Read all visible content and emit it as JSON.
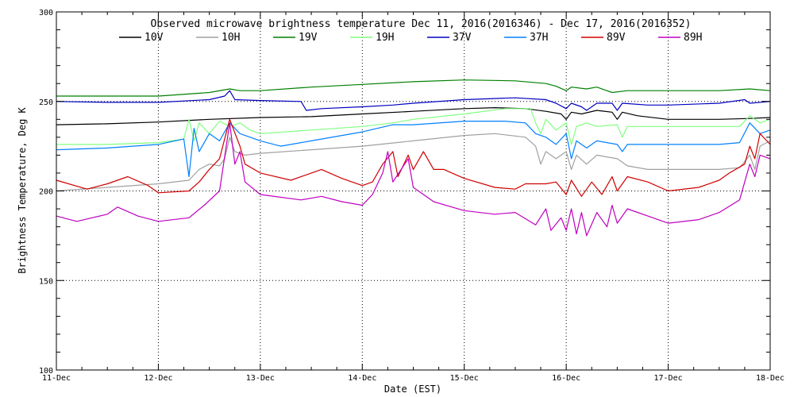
{
  "chart_data": {
    "type": "line",
    "title": "Observed microwave brightness temperature Dec 11, 2016(2016346) - Dec 17, 2016(2016352)",
    "xlabel": "Date (EST)",
    "ylabel": "Brightness Temperature, Deg K",
    "xlim": [
      0,
      7
    ],
    "ylim": [
      100,
      300
    ],
    "x_ticks": [
      {
        "value": 0,
        "label": "11-Dec"
      },
      {
        "value": 1,
        "label": "12-Dec"
      },
      {
        "value": 2,
        "label": "13-Dec"
      },
      {
        "value": 3,
        "label": "14-Dec"
      },
      {
        "value": 4,
        "label": "15-Dec"
      },
      {
        "value": 5,
        "label": "16-Dec"
      },
      {
        "value": 6,
        "label": "17-Dec"
      },
      {
        "value": 7,
        "label": "18-Dec"
      }
    ],
    "y_ticks": [
      {
        "value": 100,
        "label": "100"
      },
      {
        "value": 150,
        "label": "150"
      },
      {
        "value": 200,
        "label": "200"
      },
      {
        "value": 250,
        "label": "250"
      },
      {
        "value": 300,
        "label": "300"
      }
    ],
    "grid": "dotted",
    "legend_position": "top",
    "series": [
      {
        "name": "10V",
        "color": "#000000",
        "points": [
          [
            0,
            237
          ],
          [
            0.5,
            237.5
          ],
          [
            1,
            238.5
          ],
          [
            1.5,
            240
          ],
          [
            2,
            241
          ],
          [
            2.5,
            241.5
          ],
          [
            3,
            243
          ],
          [
            3.5,
            244.5
          ],
          [
            4,
            246
          ],
          [
            4.3,
            246.5
          ],
          [
            4.6,
            246
          ],
          [
            4.8,
            244.5
          ],
          [
            4.95,
            243
          ],
          [
            5,
            240
          ],
          [
            5.05,
            244
          ],
          [
            5.15,
            243
          ],
          [
            5.3,
            245
          ],
          [
            5.45,
            244
          ],
          [
            5.5,
            240
          ],
          [
            5.55,
            244
          ],
          [
            5.7,
            242
          ],
          [
            6,
            240
          ],
          [
            6.5,
            240
          ],
          [
            6.8,
            240.5
          ],
          [
            7,
            241
          ]
        ]
      },
      {
        "name": "10H",
        "color": "#a0a0a0",
        "points": [
          [
            0,
            200
          ],
          [
            0.5,
            202
          ],
          [
            1,
            204
          ],
          [
            1.3,
            206
          ],
          [
            1.4,
            212
          ],
          [
            1.5,
            215
          ],
          [
            1.6,
            214
          ],
          [
            1.65,
            218
          ],
          [
            1.7,
            230
          ],
          [
            1.75,
            222
          ],
          [
            1.85,
            220
          ],
          [
            2,
            221
          ],
          [
            2.5,
            223
          ],
          [
            3,
            225
          ],
          [
            3.5,
            228
          ],
          [
            4,
            231
          ],
          [
            4.3,
            232
          ],
          [
            4.6,
            230
          ],
          [
            4.7,
            225
          ],
          [
            4.75,
            215
          ],
          [
            4.8,
            222
          ],
          [
            4.9,
            218
          ],
          [
            5,
            222
          ],
          [
            5.05,
            212
          ],
          [
            5.1,
            220
          ],
          [
            5.2,
            215
          ],
          [
            5.3,
            220
          ],
          [
            5.5,
            218
          ],
          [
            5.6,
            214
          ],
          [
            5.8,
            212
          ],
          [
            6,
            212
          ],
          [
            6.5,
            212
          ],
          [
            6.7,
            213
          ],
          [
            6.8,
            220
          ],
          [
            6.85,
            212
          ],
          [
            6.9,
            225
          ],
          [
            7,
            228
          ]
        ]
      },
      {
        "name": "19V",
        "color": "#008000",
        "points": [
          [
            0,
            253
          ],
          [
            0.5,
            253
          ],
          [
            1,
            253
          ],
          [
            1.5,
            255
          ],
          [
            1.7,
            257
          ],
          [
            1.8,
            256
          ],
          [
            2,
            256
          ],
          [
            2.5,
            258
          ],
          [
            3,
            259.5
          ],
          [
            3.5,
            261
          ],
          [
            4,
            262
          ],
          [
            4.5,
            261.5
          ],
          [
            4.8,
            260
          ],
          [
            4.9,
            258.5
          ],
          [
            5,
            256
          ],
          [
            5.05,
            258
          ],
          [
            5.2,
            257
          ],
          [
            5.3,
            258
          ],
          [
            5.45,
            255
          ],
          [
            5.6,
            256
          ],
          [
            6,
            256
          ],
          [
            6.5,
            256
          ],
          [
            6.8,
            257
          ],
          [
            7,
            256
          ]
        ]
      },
      {
        "name": "19H",
        "color": "#80ff80",
        "points": [
          [
            0,
            226
          ],
          [
            0.5,
            226
          ],
          [
            1,
            227
          ],
          [
            1.25,
            229
          ],
          [
            1.3,
            240
          ],
          [
            1.35,
            228
          ],
          [
            1.4,
            238
          ],
          [
            1.5,
            232
          ],
          [
            1.6,
            239
          ],
          [
            1.7,
            236
          ],
          [
            1.8,
            238
          ],
          [
            1.9,
            234
          ],
          [
            2,
            232
          ],
          [
            2.5,
            234
          ],
          [
            3,
            236
          ],
          [
            3.3,
            238
          ],
          [
            3.5,
            240
          ],
          [
            4,
            243
          ],
          [
            4.4,
            246
          ],
          [
            4.65,
            246
          ],
          [
            4.7,
            238
          ],
          [
            4.75,
            232
          ],
          [
            4.8,
            240
          ],
          [
            4.9,
            234
          ],
          [
            5,
            238
          ],
          [
            5.05,
            226
          ],
          [
            5.1,
            236
          ],
          [
            5.2,
            238
          ],
          [
            5.3,
            236
          ],
          [
            5.5,
            237
          ],
          [
            5.55,
            230
          ],
          [
            5.6,
            236
          ],
          [
            6,
            236
          ],
          [
            6.5,
            236
          ],
          [
            6.7,
            236
          ],
          [
            6.8,
            242
          ],
          [
            6.9,
            238
          ],
          [
            7,
            240
          ]
        ]
      },
      {
        "name": "37V",
        "color": "#0000c0",
        "points": [
          [
            0,
            250
          ],
          [
            0.5,
            249.5
          ],
          [
            1,
            249.5
          ],
          [
            1.5,
            251
          ],
          [
            1.65,
            253
          ],
          [
            1.7,
            256
          ],
          [
            1.75,
            251
          ],
          [
            2,
            250.5
          ],
          [
            2.4,
            250
          ],
          [
            2.45,
            245
          ],
          [
            2.6,
            246
          ],
          [
            3,
            247
          ],
          [
            3.3,
            248
          ],
          [
            3.5,
            249
          ],
          [
            4,
            251
          ],
          [
            4.5,
            252
          ],
          [
            4.8,
            251
          ],
          [
            4.9,
            249
          ],
          [
            5,
            246
          ],
          [
            5.05,
            249
          ],
          [
            5.15,
            247
          ],
          [
            5.2,
            245
          ],
          [
            5.3,
            249
          ],
          [
            5.45,
            249
          ],
          [
            5.5,
            245
          ],
          [
            5.55,
            249
          ],
          [
            5.8,
            248
          ],
          [
            6,
            248
          ],
          [
            6.5,
            249
          ],
          [
            6.75,
            251
          ],
          [
            6.8,
            249
          ],
          [
            7,
            250
          ]
        ]
      },
      {
        "name": "37H",
        "color": "#0080ff",
        "points": [
          [
            0,
            223
          ],
          [
            0.5,
            224
          ],
          [
            1,
            226
          ],
          [
            1.25,
            229
          ],
          [
            1.3,
            208
          ],
          [
            1.35,
            235
          ],
          [
            1.4,
            222
          ],
          [
            1.5,
            232
          ],
          [
            1.6,
            228
          ],
          [
            1.7,
            238
          ],
          [
            1.8,
            232
          ],
          [
            1.9,
            230
          ],
          [
            2,
            228
          ],
          [
            2.2,
            225
          ],
          [
            2.5,
            228
          ],
          [
            3,
            233
          ],
          [
            3.3,
            237
          ],
          [
            3.5,
            237
          ],
          [
            4,
            239
          ],
          [
            4.4,
            239
          ],
          [
            4.6,
            238
          ],
          [
            4.7,
            232
          ],
          [
            4.8,
            230
          ],
          [
            4.9,
            226
          ],
          [
            5,
            232
          ],
          [
            5.05,
            218
          ],
          [
            5.1,
            228
          ],
          [
            5.2,
            224
          ],
          [
            5.3,
            228
          ],
          [
            5.5,
            226
          ],
          [
            5.55,
            222
          ],
          [
            5.6,
            226
          ],
          [
            6,
            226
          ],
          [
            6.5,
            226
          ],
          [
            6.7,
            227
          ],
          [
            6.8,
            238
          ],
          [
            6.9,
            232
          ],
          [
            7,
            234
          ]
        ]
      },
      {
        "name": "89V",
        "color": "#d00000",
        "points": [
          [
            0,
            206
          ],
          [
            0.3,
            201
          ],
          [
            0.5,
            204
          ],
          [
            0.7,
            208
          ],
          [
            0.9,
            203
          ],
          [
            1,
            199
          ],
          [
            1.3,
            200
          ],
          [
            1.4,
            205
          ],
          [
            1.5,
            212
          ],
          [
            1.6,
            218
          ],
          [
            1.7,
            240
          ],
          [
            1.8,
            225
          ],
          [
            1.85,
            215
          ],
          [
            2,
            210
          ],
          [
            2.3,
            206
          ],
          [
            2.6,
            212
          ],
          [
            2.8,
            207
          ],
          [
            3,
            203
          ],
          [
            3.1,
            205
          ],
          [
            3.2,
            215
          ],
          [
            3.3,
            222
          ],
          [
            3.35,
            208
          ],
          [
            3.45,
            220
          ],
          [
            3.5,
            212
          ],
          [
            3.6,
            222
          ],
          [
            3.7,
            212
          ],
          [
            3.8,
            212
          ],
          [
            4,
            207
          ],
          [
            4.3,
            202
          ],
          [
            4.5,
            201
          ],
          [
            4.6,
            204
          ],
          [
            4.8,
            204
          ],
          [
            4.9,
            205
          ],
          [
            5,
            198
          ],
          [
            5.05,
            206
          ],
          [
            5.15,
            197
          ],
          [
            5.25,
            205
          ],
          [
            5.35,
            198
          ],
          [
            5.45,
            208
          ],
          [
            5.5,
            200
          ],
          [
            5.6,
            208
          ],
          [
            5.8,
            205
          ],
          [
            6,
            200
          ],
          [
            6.3,
            202
          ],
          [
            6.5,
            206
          ],
          [
            6.6,
            210
          ],
          [
            6.75,
            215
          ],
          [
            6.8,
            225
          ],
          [
            6.85,
            218
          ],
          [
            6.9,
            232
          ],
          [
            7,
            226
          ]
        ]
      },
      {
        "name": "89H",
        "color": "#c000c0",
        "points": [
          [
            0,
            186
          ],
          [
            0.2,
            183
          ],
          [
            0.5,
            187
          ],
          [
            0.6,
            191
          ],
          [
            0.8,
            186
          ],
          [
            1,
            183
          ],
          [
            1.3,
            185
          ],
          [
            1.45,
            192
          ],
          [
            1.6,
            200
          ],
          [
            1.7,
            238
          ],
          [
            1.75,
            215
          ],
          [
            1.8,
            222
          ],
          [
            1.85,
            205
          ],
          [
            2,
            198
          ],
          [
            2.4,
            195
          ],
          [
            2.6,
            197
          ],
          [
            2.8,
            194
          ],
          [
            3,
            192
          ],
          [
            3.1,
            198
          ],
          [
            3.2,
            210
          ],
          [
            3.25,
            222
          ],
          [
            3.3,
            205
          ],
          [
            3.45,
            218
          ],
          [
            3.5,
            202
          ],
          [
            3.6,
            198
          ],
          [
            3.7,
            194
          ],
          [
            4,
            189
          ],
          [
            4.3,
            187
          ],
          [
            4.5,
            188
          ],
          [
            4.7,
            181
          ],
          [
            4.8,
            190
          ],
          [
            4.85,
            178
          ],
          [
            4.95,
            185
          ],
          [
            5,
            178
          ],
          [
            5.05,
            190
          ],
          [
            5.1,
            176
          ],
          [
            5.15,
            188
          ],
          [
            5.2,
            175
          ],
          [
            5.3,
            188
          ],
          [
            5.4,
            180
          ],
          [
            5.45,
            192
          ],
          [
            5.5,
            182
          ],
          [
            5.6,
            190
          ],
          [
            5.8,
            186
          ],
          [
            6,
            182
          ],
          [
            6.3,
            184
          ],
          [
            6.5,
            188
          ],
          [
            6.7,
            195
          ],
          [
            6.75,
            205
          ],
          [
            6.8,
            215
          ],
          [
            6.85,
            208
          ],
          [
            6.9,
            220
          ],
          [
            7,
            218
          ]
        ]
      }
    ]
  }
}
